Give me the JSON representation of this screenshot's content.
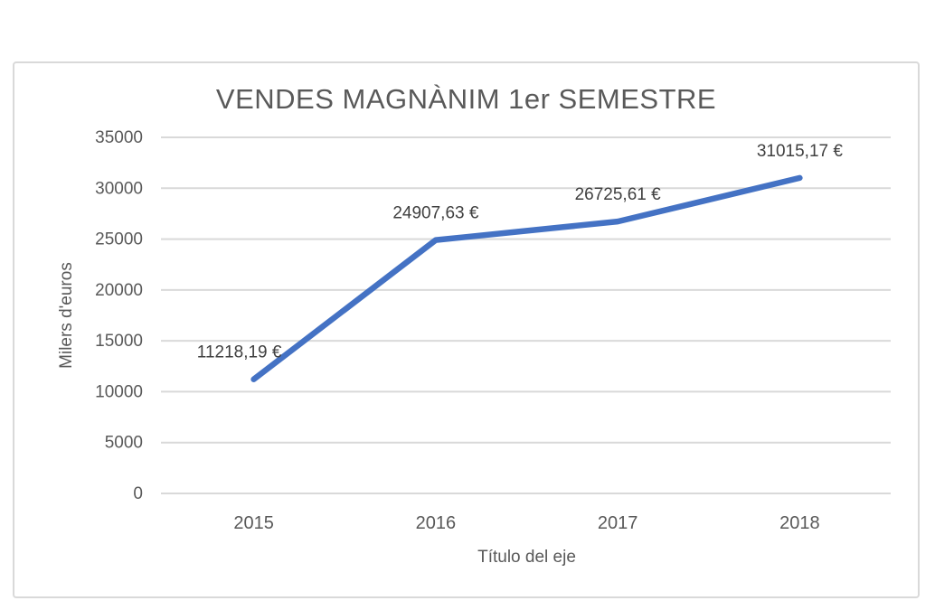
{
  "chart_data": {
    "type": "line",
    "title": "VENDES MAGNÀNIM 1er SEMESTRE",
    "xlabel": "Título del eje",
    "ylabel": "Milers d'euros",
    "categories": [
      "2015",
      "2016",
      "2017",
      "2018"
    ],
    "series": [
      {
        "name": "VENDES MAGNÀNIM 1er SEMESTRE",
        "values": [
          11218.19,
          24907.63,
          26725.61,
          31015.17
        ],
        "data_labels": [
          "11218,19 €",
          "24907,63 €",
          "26725,61 €",
          "31015,17 €"
        ],
        "color": "#4472C4"
      }
    ],
    "yticks": [
      0,
      5000,
      10000,
      15000,
      20000,
      25000,
      30000,
      35000
    ],
    "ylim": [
      0,
      35000
    ],
    "grid": "horizontal",
    "legend": "none"
  },
  "colors": {
    "line": "#4472C4",
    "gridline": "#D9D9D9",
    "frame_border": "#D9D9D9",
    "title_text": "#595959",
    "tick_text": "#595959",
    "data_label_text": "#404040",
    "background": "#FFFFFF"
  }
}
